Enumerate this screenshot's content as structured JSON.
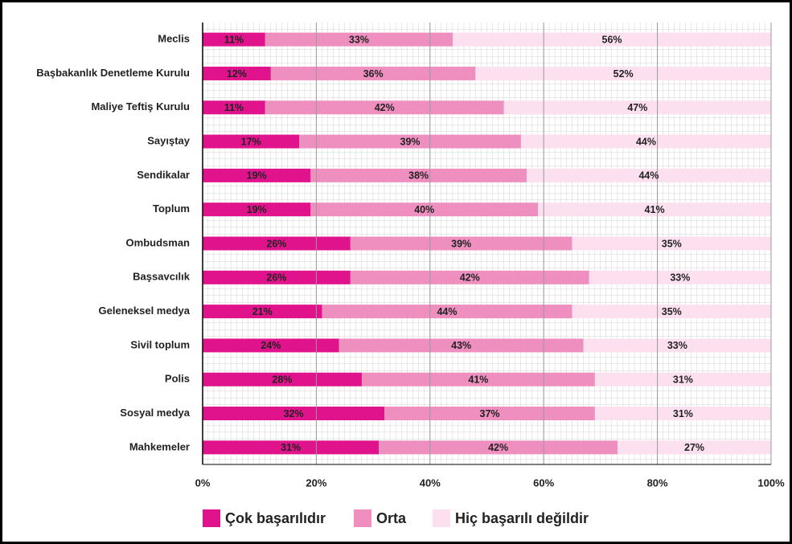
{
  "chart_data": {
    "type": "stacked-barh",
    "categories": [
      "Meclis",
      "Başbakanlık Denetleme Kurulu",
      "Maliye Teftiş Kurulu",
      "Sayıştay",
      "Sendikalar",
      "Toplum",
      "Ombudsman",
      "Başsavcılık",
      "Geleneksel medya",
      "Sivil toplum",
      "Polis",
      "Sosyal medya",
      "Mahkemeler"
    ],
    "series": [
      {
        "name": "Çok başarılıdır",
        "color": "#e0138c",
        "values": [
          11,
          12,
          11,
          17,
          19,
          19,
          26,
          26,
          21,
          24,
          28,
          32,
          31
        ],
        "value_labels": [
          "11%",
          "12%",
          "11%",
          "17%",
          "19%",
          "19%",
          "26%",
          "26%",
          "21%",
          "24%",
          "28%",
          "32%",
          "31%"
        ]
      },
      {
        "name": "Orta",
        "color": "#ef8fc0",
        "values": [
          33,
          36,
          42,
          39,
          38,
          40,
          39,
          42,
          44,
          43,
          41,
          37,
          42
        ],
        "value_labels": [
          "33%",
          "36%",
          "42%",
          "39%",
          "38%",
          "40%",
          "39%",
          "42%",
          "44%",
          "43%",
          "41%",
          "37%",
          "42%"
        ]
      },
      {
        "name": "Hiç başarılı değildir",
        "color": "#fde0ef",
        "values": [
          56,
          52,
          47,
          44,
          44,
          41,
          35,
          33,
          35,
          33,
          31,
          31,
          27
        ],
        "value_labels": [
          "56%",
          "52%",
          "47%",
          "44%",
          "44%",
          "41%",
          "35%",
          "33%",
          "35%",
          "33%",
          "31%",
          "31%",
          "27%"
        ]
      }
    ],
    "xlim": [
      0,
      100
    ],
    "xticks": [
      {
        "value": 0,
        "label": "0%"
      },
      {
        "value": 20,
        "label": "20%"
      },
      {
        "value": 40,
        "label": "40%"
      },
      {
        "value": 60,
        "label": "60%"
      },
      {
        "value": 80,
        "label": "80%"
      },
      {
        "value": 100,
        "label": "100%"
      }
    ],
    "grid": true,
    "legend": "bottom"
  }
}
